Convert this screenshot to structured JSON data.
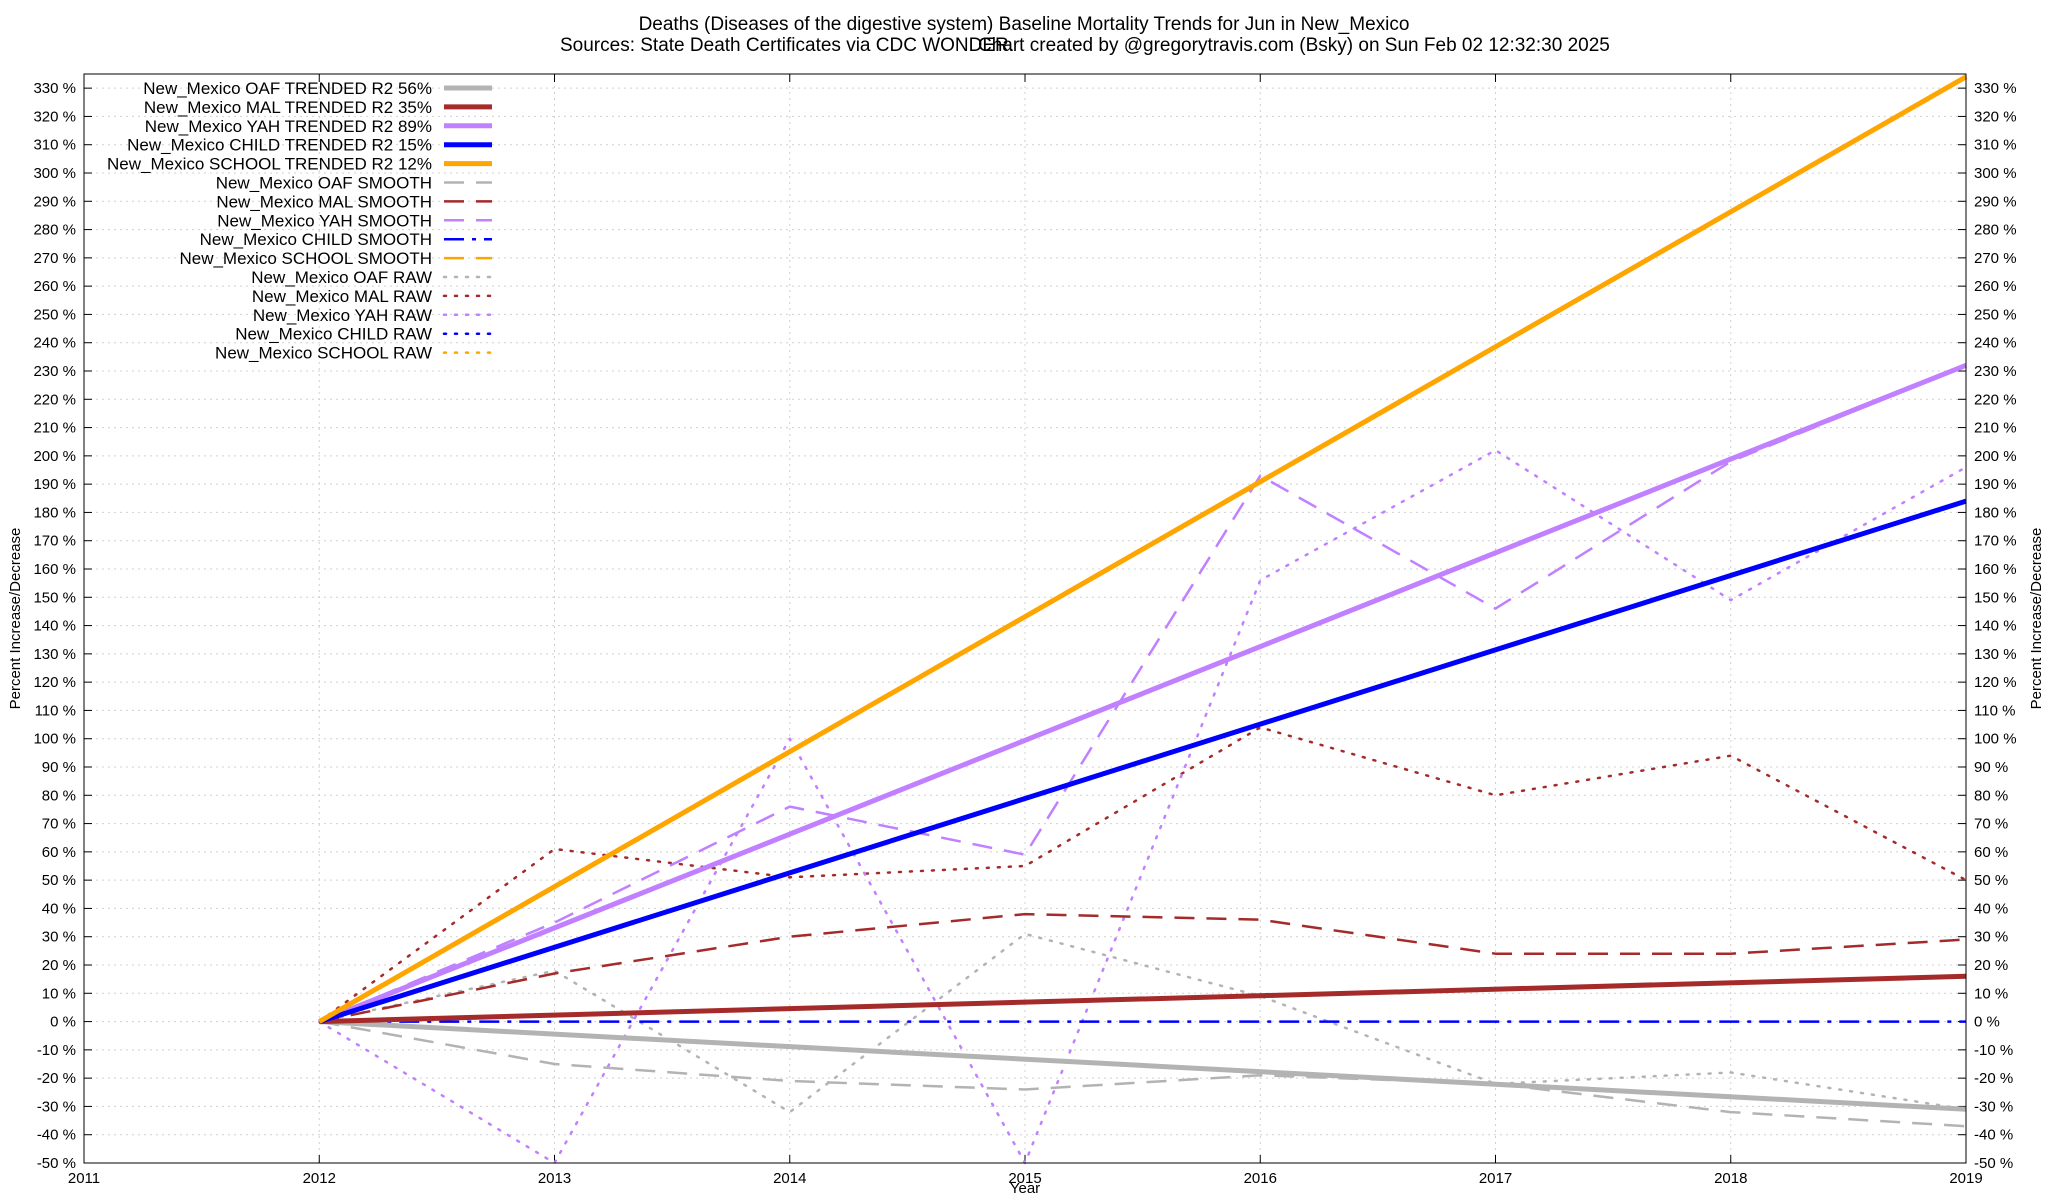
{
  "title_line1": "Deaths (Diseases of the digestive system)  Baseline Mortality Trends for Jun in New_Mexico",
  "title_sources": "Sources: State Death Certificates via CDC WONDER.",
  "title_credit": "Chart created by @gregorytravis.com (Bsky) on Sun Feb 02 12:32:30 2025",
  "chart_data": {
    "type": "line",
    "xlabel": "Year",
    "ylabel": "Percent Increase/Decrease",
    "y2label": "Percent Increase/Decrease",
    "xlim": [
      2011,
      2019
    ],
    "ylim": [
      -50,
      335
    ],
    "xticks": [
      2011,
      2012,
      2013,
      2014,
      2015,
      2016,
      2017,
      2018,
      2019
    ],
    "yticks": [
      -50,
      -40,
      -30,
      -20,
      -10,
      0,
      10,
      20,
      30,
      40,
      50,
      60,
      70,
      80,
      90,
      100,
      110,
      120,
      130,
      140,
      150,
      160,
      170,
      180,
      190,
      200,
      210,
      220,
      230,
      240,
      250,
      260,
      270,
      280,
      290,
      300,
      310,
      320,
      330
    ],
    "ytick_suffix": " %",
    "grid": true,
    "legend_position": "top-left",
    "series": [
      {
        "name": "New_Mexico OAF TRENDED R2  56%",
        "color": "#b3b3b3",
        "style": "solid",
        "x": [
          2012,
          2019
        ],
        "y": [
          0,
          -31
        ]
      },
      {
        "name": "New_Mexico MAL TRENDED R2  35%",
        "color": "#a52a2a",
        "style": "solid",
        "x": [
          2012,
          2019
        ],
        "y": [
          0,
          16
        ]
      },
      {
        "name": "New_Mexico YAH TRENDED R2  89%",
        "color": "#c080ff",
        "style": "solid",
        "x": [
          2012,
          2019
        ],
        "y": [
          0,
          232
        ]
      },
      {
        "name": "New_Mexico CHILD TRENDED R2  15%",
        "color": "#0000ff",
        "style": "solid",
        "x": [
          2012,
          2019
        ],
        "y": [
          0,
          184
        ]
      },
      {
        "name": "New_Mexico SCHOOL TRENDED R2  12%",
        "color": "#ffa500",
        "style": "solid",
        "x": [
          2012,
          2019
        ],
        "y": [
          0,
          334
        ]
      },
      {
        "name": "New_Mexico OAF SMOOTH",
        "color": "#b3b3b3",
        "style": "dashed",
        "x": [
          2012,
          2013,
          2014,
          2015,
          2016,
          2017,
          2018,
          2019
        ],
        "y": [
          0,
          -15,
          -21,
          -24,
          -19,
          -22,
          -32,
          -37
        ]
      },
      {
        "name": "New_Mexico MAL SMOOTH",
        "color": "#a52a2a",
        "style": "dashed",
        "x": [
          2012,
          2013,
          2014,
          2015,
          2016,
          2017,
          2018,
          2019
        ],
        "y": [
          0,
          17,
          30,
          38,
          36,
          24,
          24,
          29
        ]
      },
      {
        "name": "New_Mexico YAH SMOOTH",
        "color": "#c080ff",
        "style": "dashed",
        "x": [
          2012,
          2013,
          2014,
          2015,
          2016,
          2017,
          2018,
          2019
        ],
        "y": [
          0,
          35,
          76,
          59,
          193,
          146,
          198,
          232
        ]
      },
      {
        "name": "New_Mexico CHILD SMOOTH",
        "color": "#0000ff",
        "style": "dashdot",
        "x": [
          2012,
          2013,
          2014,
          2015,
          2016,
          2017,
          2018,
          2019
        ],
        "y": [
          0,
          0,
          0,
          0,
          0,
          0,
          0,
          0
        ]
      },
      {
        "name": "New_Mexico SCHOOL SMOOTH",
        "color": "#ffa500",
        "style": "dashed",
        "x": [],
        "y": []
      },
      {
        "name": "New_Mexico OAF RAW",
        "color": "#b3b3b3",
        "style": "dotted",
        "x": [
          2012,
          2013,
          2014,
          2015,
          2016,
          2017,
          2018,
          2019
        ],
        "y": [
          0,
          18,
          -32,
          31,
          9,
          -22,
          -18,
          -31
        ]
      },
      {
        "name": "New_Mexico MAL RAW",
        "color": "#a52a2a",
        "style": "dotted",
        "x": [
          2012,
          2013,
          2014,
          2015,
          2016,
          2017,
          2018,
          2019
        ],
        "y": [
          0,
          61,
          51,
          55,
          104,
          80,
          94,
          50
        ]
      },
      {
        "name": "New_Mexico YAH RAW",
        "color": "#c080ff",
        "style": "dotted",
        "x": [
          2012,
          2013,
          2014,
          2015,
          2016,
          2017,
          2018,
          2019
        ],
        "y": [
          0,
          -50,
          100,
          -50,
          156,
          202,
          149,
          196
        ]
      },
      {
        "name": "New_Mexico CHILD RAW",
        "color": "#0000ff",
        "style": "dotted",
        "x": [],
        "y": []
      },
      {
        "name": "New_Mexico SCHOOL RAW",
        "color": "#ffa500",
        "style": "dotted",
        "x": [],
        "y": []
      }
    ]
  }
}
